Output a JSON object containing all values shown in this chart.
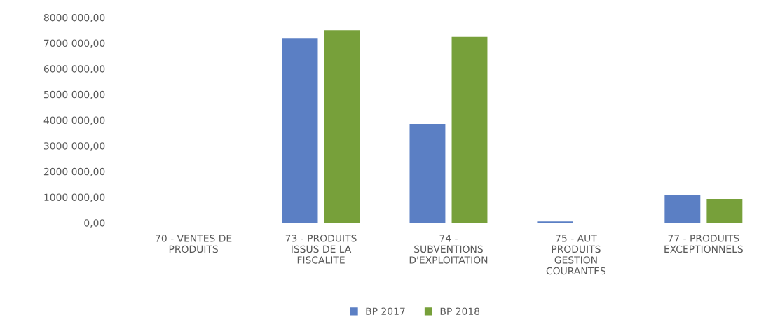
{
  "chart_data": {
    "type": "bar",
    "categories": [
      "70 - VENTES DE PRODUITS",
      "73 - PRODUITS ISSUS DE LA FISCALITE",
      "74 - SUBVENTIONS D'EXPLOITATION",
      "75 - AUT PRODUITS GESTION COURANTES",
      "77 - PRODUITS EXCEPTIONNELS"
    ],
    "series": [
      {
        "name": "BP 2017",
        "color": "#5b7fc4",
        "values": [
          0,
          7170000,
          3850000,
          50000,
          1080000
        ]
      },
      {
        "name": "BP 2018",
        "color": "#77a03a",
        "values": [
          0,
          7500000,
          7240000,
          0,
          930000
        ]
      }
    ],
    "ylim": [
      0,
      8000000
    ],
    "yticks": [
      {
        "value": 0,
        "label": "0,00"
      },
      {
        "value": 1000000,
        "label": "1000 000,00"
      },
      {
        "value": 2000000,
        "label": "2000 000,00"
      },
      {
        "value": 3000000,
        "label": "3000 000,00"
      },
      {
        "value": 4000000,
        "label": "4000 000,00"
      },
      {
        "value": 5000000,
        "label": "5000 000,00"
      },
      {
        "value": 6000000,
        "label": "6000 000,00"
      },
      {
        "value": 7000000,
        "label": "7000 000,00"
      },
      {
        "value": 8000000,
        "label": "8000 000,00"
      }
    ],
    "grid": false,
    "legend": "bottom"
  }
}
